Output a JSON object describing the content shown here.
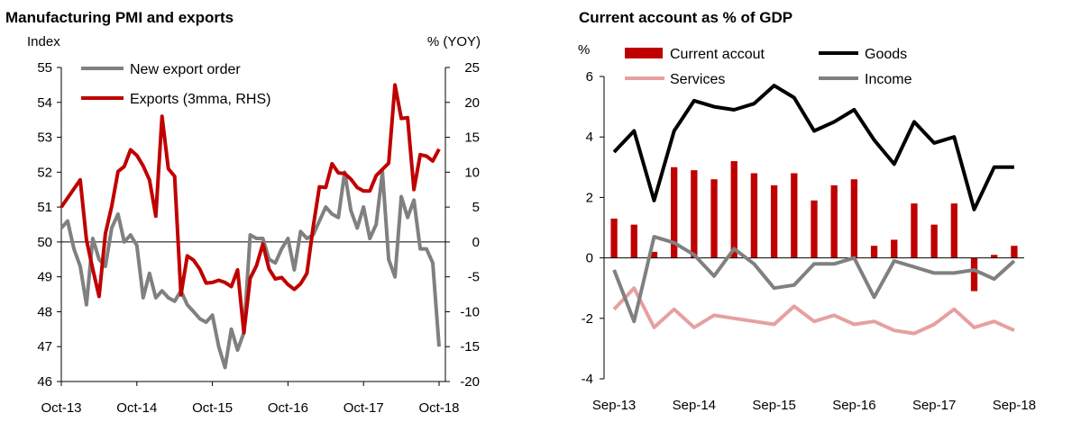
{
  "chart_data": [
    {
      "type": "line",
      "title": "Manufacturing  PMI and exports",
      "ylabel": "Index",
      "ylabel_right": "% (YOY)",
      "ylim": [
        46,
        55
      ],
      "yticks": [
        46,
        47,
        48,
        49,
        50,
        51,
        52,
        53,
        54,
        55
      ],
      "ylim_right": [
        -20,
        25
      ],
      "yticks_right": [
        -20,
        -15,
        -10,
        -5,
        0,
        5,
        10,
        15,
        20,
        25
      ],
      "x_range": [
        0,
        61
      ],
      "x_ticks": [
        {
          "label": "Oct-13",
          "x": 0
        },
        {
          "label": "Oct-14",
          "x": 12
        },
        {
          "label": "Oct-15",
          "x": 24
        },
        {
          "label": "Oct-16",
          "x": 36
        },
        {
          "label": "Oct-17",
          "x": 48
        },
        {
          "label": "Oct-18",
          "x": 60
        }
      ],
      "series": [
        {
          "name": "New export order",
          "axis": "left",
          "color": "#808080",
          "values": [
            50.4,
            50.6,
            49.8,
            49.3,
            48.2,
            50.1,
            49.5,
            49.3,
            50.4,
            50.8,
            50.0,
            50.2,
            49.9,
            48.4,
            49.1,
            48.4,
            48.6,
            48.4,
            48.3,
            48.6,
            48.2,
            48.0,
            47.8,
            47.7,
            47.9,
            47.0,
            46.4,
            47.5,
            46.9,
            47.4,
            50.2,
            50.1,
            50.1,
            49.5,
            49.4,
            49.8,
            50.1,
            49.2,
            50.3,
            50.1,
            50.2,
            50.6,
            51.0,
            50.8,
            50.7,
            52.0,
            50.9,
            50.4,
            51.0,
            50.1,
            50.5,
            52.0,
            49.5,
            49.0,
            51.3,
            50.7,
            51.2,
            49.8,
            49.8,
            49.4,
            47.0
          ]
        },
        {
          "name": "Exports (3mma, RHS)",
          "axis": "right",
          "color": "#c00000",
          "values": [
            5.0,
            6.3,
            7.6,
            8.9,
            0.3,
            -3.9,
            -7.8,
            1.2,
            5.1,
            10.1,
            10.8,
            13.2,
            12.4,
            10.9,
            8.9,
            3.7,
            18.0,
            10.5,
            9.4,
            -7.6,
            -2.0,
            -2.6,
            -3.9,
            -5.9,
            -5.8,
            -5.5,
            -5.8,
            -6.4,
            -4.0,
            -13.0,
            -5.2,
            -3.4,
            -0.3,
            -3.9,
            -5.3,
            -5.1,
            -6.1,
            -6.8,
            -6.0,
            -4.5,
            2.1,
            7.9,
            7.8,
            11.2,
            9.9,
            9.8,
            9.0,
            7.8,
            7.3,
            7.3,
            9.5,
            10.4,
            11.3,
            22.5,
            17.7,
            17.8,
            7.5,
            12.5,
            12.3,
            11.6,
            13.3
          ]
        }
      ]
    },
    {
      "type": "bar+line",
      "title": "Current account  as % of GDP",
      "ylabel": "%",
      "ylim": [
        -4,
        6
      ],
      "yticks": [
        -4,
        -2,
        0,
        2,
        4,
        6
      ],
      "x_ticks": [
        {
          "label": "Sep-13",
          "index": 0
        },
        {
          "label": "Sep-14",
          "index": 4
        },
        {
          "label": "Sep-15",
          "index": 8
        },
        {
          "label": "Sep-16",
          "index": 12
        },
        {
          "label": "Sep-17",
          "index": 16
        },
        {
          "label": "Sep-18",
          "index": 20
        }
      ],
      "n_points": 21,
      "bars": {
        "name": "Current accout",
        "color": "#c00000",
        "values": [
          1.3,
          1.1,
          0.2,
          3.0,
          2.9,
          2.6,
          3.2,
          2.8,
          2.4,
          2.8,
          1.9,
          2.4,
          2.6,
          0.4,
          0.6,
          1.8,
          1.1,
          1.8,
          -1.1,
          0.1,
          0.4
        ]
      },
      "series": [
        {
          "name": "Goods",
          "color": "#000000",
          "values": [
            3.5,
            4.2,
            1.9,
            4.2,
            5.2,
            5.0,
            4.9,
            5.1,
            5.7,
            5.3,
            4.2,
            4.5,
            4.9,
            3.9,
            3.1,
            4.5,
            3.8,
            4.0,
            1.6,
            3.0,
            3.0
          ]
        },
        {
          "name": "Services",
          "color": "#e6a0a0",
          "values": [
            -1.7,
            -1.0,
            -2.3,
            -1.7,
            -2.3,
            -1.9,
            -2.0,
            -2.1,
            -2.2,
            -1.6,
            -2.1,
            -1.9,
            -2.2,
            -2.1,
            -2.4,
            -2.5,
            -2.2,
            -1.7,
            -2.3,
            -2.1,
            -2.4
          ]
        },
        {
          "name": "Income",
          "color": "#808080",
          "values": [
            -0.4,
            -2.1,
            0.7,
            0.5,
            0.1,
            -0.6,
            0.3,
            -0.2,
            -1.0,
            -0.9,
            -0.2,
            -0.2,
            0.0,
            -1.3,
            -0.1,
            -0.3,
            -0.5,
            -0.5,
            -0.4,
            -0.7,
            -0.1
          ]
        }
      ]
    }
  ]
}
